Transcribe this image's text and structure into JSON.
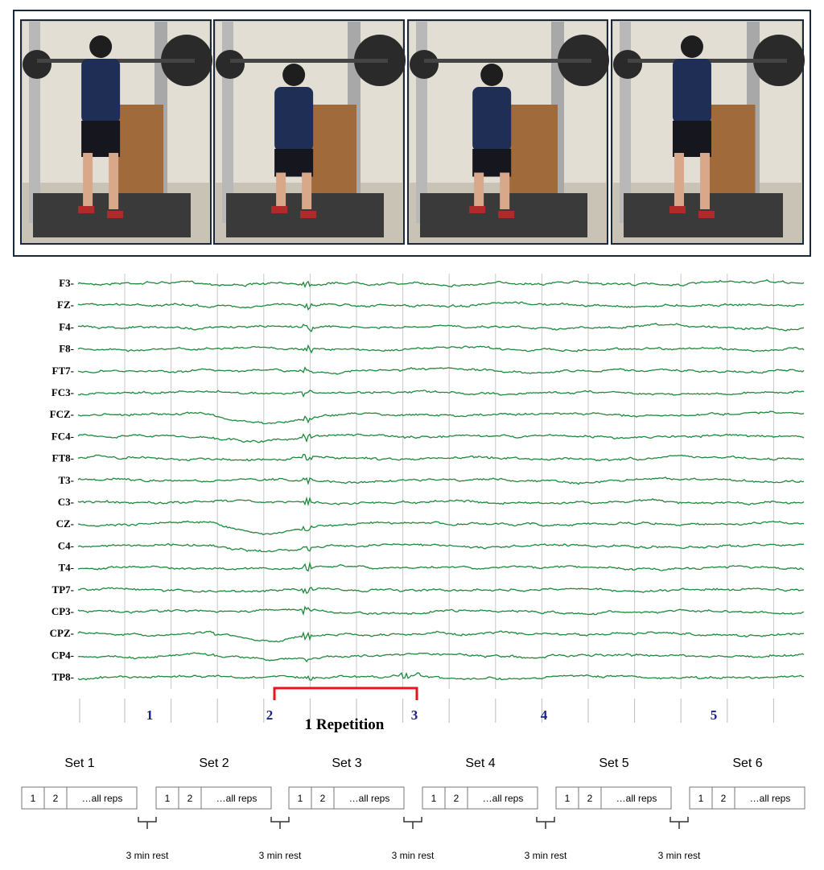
{
  "channels": [
    "F3-",
    "FZ-",
    "F4-",
    "F8-",
    "FT7-",
    "FC3-",
    "FCZ-",
    "FC4-",
    "FT8-",
    "T3-",
    "C3-",
    "CZ-",
    "C4-",
    "T4-",
    "TP7-",
    "CP3-",
    "CPZ-",
    "CP4-",
    "TP8-"
  ],
  "repetition_markers": [
    "1",
    "2",
    "3",
    "4",
    "5"
  ],
  "repetition_label": "1 Repetition",
  "sets": [
    {
      "title": "Set 1",
      "reps": [
        "1",
        "2",
        "…all reps"
      ]
    },
    {
      "title": "Set 2",
      "reps": [
        "1",
        "2",
        "…all reps"
      ]
    },
    {
      "title": "Set 3",
      "reps": [
        "1",
        "2",
        "…all reps"
      ]
    },
    {
      "title": "Set 4",
      "reps": [
        "1",
        "2",
        "…all reps"
      ]
    },
    {
      "title": "Set 5",
      "reps": [
        "1",
        "2",
        "…all reps"
      ]
    },
    {
      "title": "Set 6",
      "reps": [
        "1",
        "2",
        "…all reps"
      ]
    }
  ],
  "rest_labels": [
    "3 min rest",
    "3 min rest",
    "3 min rest",
    "3 min rest",
    "3 min rest"
  ]
}
